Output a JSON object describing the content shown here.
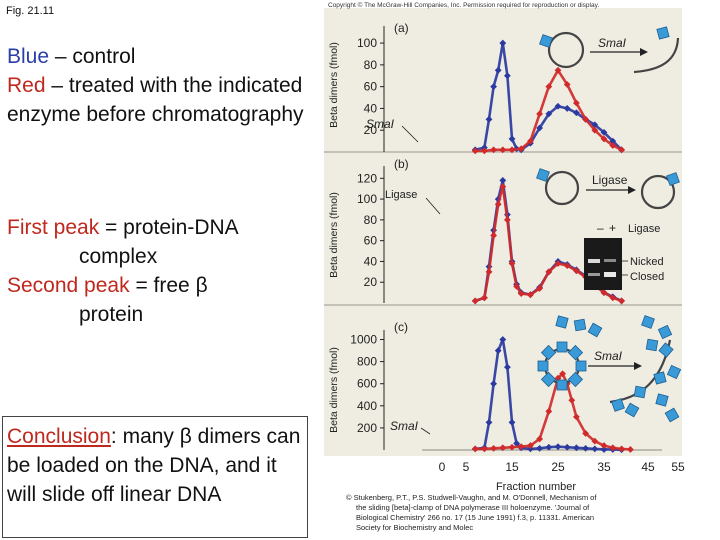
{
  "fig_label": "Fig. 21.11",
  "legend": {
    "blue_word": "Blue",
    "blue_rest": " – control",
    "red_word": "Red",
    "red_rest": " – treated with the indicated enzyme before chromatography"
  },
  "peaks": {
    "first_term": "First peak",
    "first_eq": " = ",
    "first_desc": "protein-DNA",
    "first_desc2": "complex",
    "second_term": "Second peak",
    "second_eq": " = free β",
    "second_desc2": "protein"
  },
  "conclusion": {
    "head": "Conclusion",
    "colon": ":",
    "text": " many β dimers can be loaded on the DNA, and it will slide off linear DNA"
  },
  "figure": {
    "copyright_top": "Copyright © The McGraw-Hill Companies, Inc. Permission required for reproduction or display.",
    "credit": [
      "© Stukenberg, P.T., P.S. Studwell-Vaughn, and M. O'Donnell, Mechanism of",
      "the sliding [beta]-clamp of DNA polymerase III holoenzyme. 'Journal of",
      "Biological Chemistry' 266 no. 17 (15 June 1991) f.3, p. 11331. American",
      "Society for Biochemistry and Molec"
    ],
    "ylabel": "Beta dimers (fmol)",
    "xlabel": "Fraction number",
    "x_ticks": [
      0,
      5,
      15,
      25,
      35,
      45,
      55
    ],
    "colors": {
      "control": "#2a3aa0",
      "treated": "#d02a2a",
      "bead": "#3a9ad8",
      "panel_bg": "#efece2"
    },
    "gel": {
      "minus": "–",
      "plus": "+",
      "ligase": "Ligase",
      "nicked": "Nicked",
      "closed": "Closed"
    }
  },
  "chart_data": [
    {
      "type": "line",
      "panel_label": "(a)",
      "enzyme_label": "SmaI",
      "diagram_label": "SmaI",
      "xlabel": "",
      "ylabel": "Beta dimers (fmol)",
      "y_ticks": [
        20,
        40,
        60,
        80,
        100
      ],
      "ylim": [
        0,
        112
      ],
      "xlim": [
        0,
        60
      ],
      "series": [
        {
          "color": "#2a3aa0",
          "x": [
            7,
            9,
            10,
            11,
            12,
            13,
            14,
            15,
            16,
            17,
            19,
            21,
            23,
            25,
            27,
            29,
            31,
            33,
            35,
            37,
            39
          ],
          "y": [
            2,
            4,
            30,
            60,
            75,
            100,
            70,
            12,
            3,
            2,
            8,
            22,
            35,
            42,
            40,
            36,
            30,
            25,
            18,
            10,
            2
          ]
        },
        {
          "color": "#d02a2a",
          "x": [
            7,
            9,
            11,
            13,
            15,
            17,
            19,
            21,
            23,
            25,
            27,
            29,
            31,
            33,
            35,
            37,
            39
          ],
          "y": [
            1,
            1,
            2,
            2,
            2,
            3,
            10,
            35,
            60,
            75,
            62,
            45,
            30,
            20,
            12,
            6,
            2
          ]
        }
      ]
    },
    {
      "type": "line",
      "panel_label": "(b)",
      "enzyme_label": "Ligase",
      "diagram_label": "Ligase",
      "xlabel": "",
      "ylabel": "Beta dimers (fmol)",
      "y_ticks": [
        20,
        40,
        60,
        80,
        100,
        120
      ],
      "ylim": [
        0,
        128
      ],
      "xlim": [
        0,
        60
      ],
      "series": [
        {
          "color": "#2a3aa0",
          "x": [
            7,
            9,
            10,
            11,
            12,
            13,
            14,
            15,
            16,
            17,
            19,
            21,
            23,
            25,
            27,
            29,
            31,
            33,
            35,
            37,
            39
          ],
          "y": [
            2,
            5,
            35,
            70,
            100,
            118,
            85,
            40,
            18,
            10,
            8,
            15,
            30,
            40,
            37,
            32,
            26,
            18,
            10,
            6,
            2
          ]
        },
        {
          "color": "#d02a2a",
          "x": [
            7,
            9,
            10,
            11,
            12,
            13,
            14,
            15,
            16,
            17,
            19,
            21,
            23,
            25,
            27,
            29,
            31,
            33,
            35,
            37,
            39
          ],
          "y": [
            2,
            5,
            30,
            65,
            95,
            112,
            80,
            38,
            16,
            9,
            8,
            14,
            30,
            38,
            36,
            31,
            25,
            17,
            10,
            5,
            2
          ]
        }
      ]
    },
    {
      "type": "line",
      "panel_label": "(c)",
      "enzyme_label": "SmaI",
      "diagram_label": "SmaI",
      "xlabel": "Fraction number",
      "ylabel": "Beta dimers (fmol)",
      "y_ticks": [
        200,
        400,
        600,
        800,
        1000
      ],
      "ylim": [
        0,
        1050
      ],
      "xlim": [
        0,
        60
      ],
      "x_ticks": [
        0,
        5,
        15,
        25,
        35,
        45,
        55
      ],
      "series": [
        {
          "color": "#2a3aa0",
          "x": [
            7,
            9,
            10,
            11,
            12,
            13,
            14,
            15,
            16,
            17,
            19,
            21,
            23,
            25,
            27,
            29,
            31,
            33,
            35,
            37,
            39
          ],
          "y": [
            10,
            20,
            250,
            600,
            900,
            1000,
            750,
            250,
            60,
            20,
            10,
            15,
            25,
            30,
            25,
            20,
            15,
            10,
            5,
            5,
            2
          ]
        },
        {
          "color": "#d02a2a",
          "x": [
            7,
            9,
            11,
            13,
            15,
            17,
            19,
            21,
            23,
            25,
            26,
            27,
            28,
            29,
            31,
            33,
            35,
            37,
            39,
            41
          ],
          "y": [
            10,
            10,
            15,
            20,
            25,
            30,
            40,
            100,
            350,
            650,
            690,
            600,
            450,
            300,
            150,
            80,
            40,
            20,
            10,
            5
          ]
        }
      ]
    }
  ]
}
